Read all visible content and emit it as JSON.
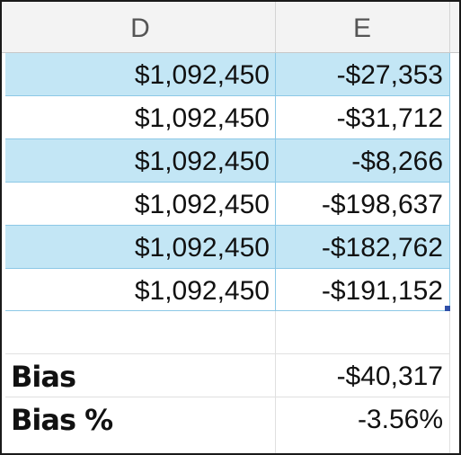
{
  "columns": {
    "d": "D",
    "e": "E"
  },
  "rows": [
    {
      "d": "$1,092,450",
      "e": "-$27,353",
      "banded": true
    },
    {
      "d": "$1,092,450",
      "e": "-$31,712",
      "banded": false
    },
    {
      "d": "$1,092,450",
      "e": "-$8,266",
      "banded": true
    },
    {
      "d": "$1,092,450",
      "e": "-$198,637",
      "banded": false
    },
    {
      "d": "$1,092,450",
      "e": "-$182,762",
      "banded": true
    },
    {
      "d": "$1,092,450",
      "e": "-$191,152",
      "banded": false
    }
  ],
  "summary": {
    "bias_label": "Bias",
    "bias_value": "-$40,317",
    "bias_pct_label": "Bias %",
    "bias_pct_value": "-3.56%"
  },
  "colors": {
    "band": "#c3e6f5",
    "band_border": "#8cc8e6",
    "header_bg": "#f3f3f3",
    "fill_handle": "#2f4fa8"
  }
}
